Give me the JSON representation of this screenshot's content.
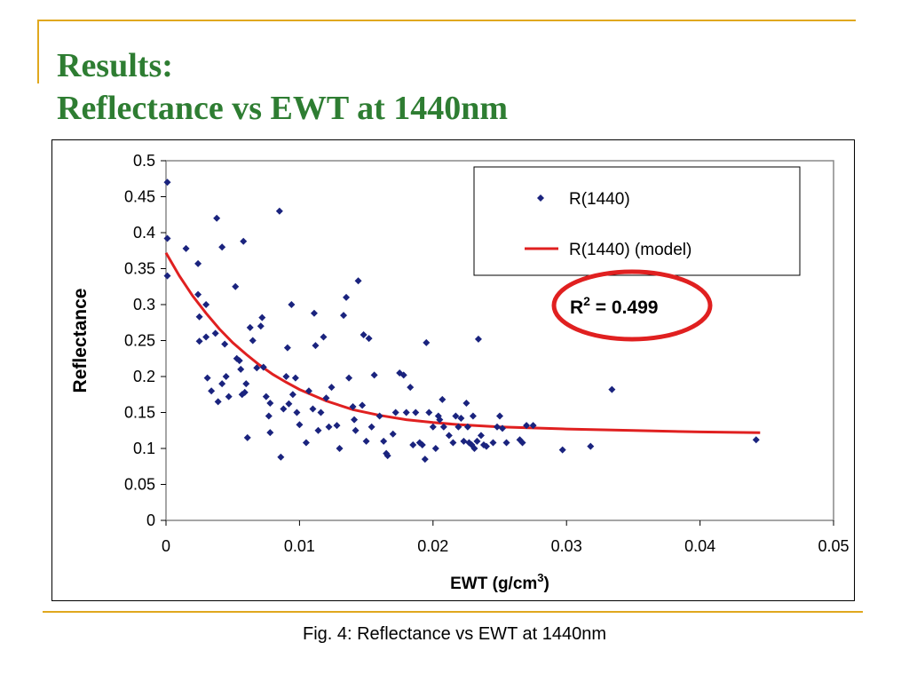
{
  "slide": {
    "title_line1": "Results:",
    "title_line2": "Reflectance vs EWT at 1440nm",
    "caption": "Fig. 4: Reflectance vs EWT at 1440nm",
    "accent_color": "#e0a81e",
    "title_color": "#2e7d32"
  },
  "chart_data": {
    "type": "scatter",
    "xlabel_base": "EWT (g/cm",
    "xlabel_sup": "3",
    "xlabel_end": ")",
    "ylabel": "Reflectance",
    "xlim": [
      0,
      0.05
    ],
    "ylim": [
      0,
      0.5
    ],
    "x_ticks": [
      "0",
      "0.01",
      "0.02",
      "0.03",
      "0.04",
      "0.05"
    ],
    "y_ticks": [
      "0",
      "0.05",
      "0.1",
      "0.15",
      "0.2",
      "0.25",
      "0.3",
      "0.35",
      "0.4",
      "0.45",
      "0.5"
    ],
    "grid": false,
    "legend_position": "top-right",
    "annotation": {
      "base": "R",
      "sup": "2",
      "rest": " = 0.499",
      "circle_color": "#e02020"
    },
    "series": [
      {
        "name": "R(1440)",
        "kind": "scatter",
        "color": "#1a237e",
        "points": [
          [
            0.0001,
            0.47
          ],
          [
            0.0001,
            0.392
          ],
          [
            0.0001,
            0.34
          ],
          [
            0.0015,
            0.378
          ],
          [
            0.0024,
            0.357
          ],
          [
            0.0024,
            0.314
          ],
          [
            0.0025,
            0.283
          ],
          [
            0.0025,
            0.249
          ],
          [
            0.003,
            0.3
          ],
          [
            0.003,
            0.255
          ],
          [
            0.0031,
            0.198
          ],
          [
            0.0034,
            0.18
          ],
          [
            0.0037,
            0.26
          ],
          [
            0.0038,
            0.42
          ],
          [
            0.0039,
            0.165
          ],
          [
            0.0042,
            0.38
          ],
          [
            0.0042,
            0.19
          ],
          [
            0.0044,
            0.245
          ],
          [
            0.0045,
            0.2
          ],
          [
            0.0047,
            0.172
          ],
          [
            0.0052,
            0.325
          ],
          [
            0.0053,
            0.225
          ],
          [
            0.0055,
            0.222
          ],
          [
            0.0056,
            0.21
          ],
          [
            0.0057,
            0.175
          ],
          [
            0.0058,
            0.388
          ],
          [
            0.0059,
            0.178
          ],
          [
            0.006,
            0.19
          ],
          [
            0.0061,
            0.115
          ],
          [
            0.0063,
            0.268
          ],
          [
            0.0065,
            0.25
          ],
          [
            0.0068,
            0.212
          ],
          [
            0.0071,
            0.27
          ],
          [
            0.0072,
            0.282
          ],
          [
            0.0073,
            0.213
          ],
          [
            0.0075,
            0.172
          ],
          [
            0.0077,
            0.145
          ],
          [
            0.0078,
            0.163
          ],
          [
            0.0078,
            0.122
          ],
          [
            0.0085,
            0.43
          ],
          [
            0.0086,
            0.088
          ],
          [
            0.0088,
            0.155
          ],
          [
            0.009,
            0.2
          ],
          [
            0.0091,
            0.24
          ],
          [
            0.0092,
            0.162
          ],
          [
            0.0094,
            0.3
          ],
          [
            0.0095,
            0.175
          ],
          [
            0.0097,
            0.198
          ],
          [
            0.0098,
            0.15
          ],
          [
            0.01,
            0.133
          ],
          [
            0.0105,
            0.108
          ],
          [
            0.0107,
            0.18
          ],
          [
            0.011,
            0.155
          ],
          [
            0.0111,
            0.288
          ],
          [
            0.0112,
            0.243
          ],
          [
            0.0114,
            0.125
          ],
          [
            0.0116,
            0.15
          ],
          [
            0.0118,
            0.255
          ],
          [
            0.012,
            0.17
          ],
          [
            0.0122,
            0.13
          ],
          [
            0.0124,
            0.185
          ],
          [
            0.0128,
            0.132
          ],
          [
            0.013,
            0.1
          ],
          [
            0.0133,
            0.285
          ],
          [
            0.0135,
            0.31
          ],
          [
            0.0137,
            0.198
          ],
          [
            0.014,
            0.158
          ],
          [
            0.0141,
            0.14
          ],
          [
            0.0142,
            0.125
          ],
          [
            0.0144,
            0.333
          ],
          [
            0.0147,
            0.16
          ],
          [
            0.0148,
            0.258
          ],
          [
            0.015,
            0.11
          ],
          [
            0.0152,
            0.253
          ],
          [
            0.0154,
            0.13
          ],
          [
            0.0156,
            0.202
          ],
          [
            0.016,
            0.145
          ],
          [
            0.0163,
            0.11
          ],
          [
            0.0165,
            0.093
          ],
          [
            0.0166,
            0.09
          ],
          [
            0.017,
            0.12
          ],
          [
            0.0172,
            0.15
          ],
          [
            0.0175,
            0.205
          ],
          [
            0.0178,
            0.202
          ],
          [
            0.018,
            0.15
          ],
          [
            0.0183,
            0.185
          ],
          [
            0.0185,
            0.105
          ],
          [
            0.0187,
            0.15
          ],
          [
            0.019,
            0.108
          ],
          [
            0.0192,
            0.105
          ],
          [
            0.0194,
            0.085
          ],
          [
            0.0195,
            0.247
          ],
          [
            0.0197,
            0.15
          ],
          [
            0.02,
            0.13
          ],
          [
            0.0202,
            0.1
          ],
          [
            0.0204,
            0.145
          ],
          [
            0.0205,
            0.14
          ],
          [
            0.0207,
            0.168
          ],
          [
            0.0208,
            0.13
          ],
          [
            0.0212,
            0.118
          ],
          [
            0.0215,
            0.108
          ],
          [
            0.0217,
            0.145
          ],
          [
            0.0219,
            0.13
          ],
          [
            0.0221,
            0.142
          ],
          [
            0.0223,
            0.11
          ],
          [
            0.0225,
            0.163
          ],
          [
            0.0226,
            0.13
          ],
          [
            0.0227,
            0.108
          ],
          [
            0.0229,
            0.105
          ],
          [
            0.023,
            0.145
          ],
          [
            0.0231,
            0.1
          ],
          [
            0.0233,
            0.11
          ],
          [
            0.0234,
            0.252
          ],
          [
            0.0236,
            0.118
          ],
          [
            0.0238,
            0.105
          ],
          [
            0.024,
            0.103
          ],
          [
            0.0245,
            0.108
          ],
          [
            0.0248,
            0.13
          ],
          [
            0.025,
            0.145
          ],
          [
            0.0252,
            0.128
          ],
          [
            0.0255,
            0.108
          ],
          [
            0.0265,
            0.112
          ],
          [
            0.0267,
            0.108
          ],
          [
            0.027,
            0.132
          ],
          [
            0.0275,
            0.132
          ],
          [
            0.0297,
            0.098
          ],
          [
            0.0318,
            0.103
          ],
          [
            0.0334,
            0.182
          ],
          [
            0.0442,
            0.112
          ]
        ]
      },
      {
        "name": "R(1440) (model)",
        "kind": "line",
        "color": "#e02020",
        "points": [
          [
            0.0,
            0.372
          ],
          [
            0.001,
            0.34
          ],
          [
            0.002,
            0.312
          ],
          [
            0.003,
            0.288
          ],
          [
            0.004,
            0.266
          ],
          [
            0.005,
            0.247
          ],
          [
            0.006,
            0.231
          ],
          [
            0.007,
            0.216
          ],
          [
            0.008,
            0.203
          ],
          [
            0.009,
            0.192
          ],
          [
            0.01,
            0.182
          ],
          [
            0.012,
            0.166
          ],
          [
            0.014,
            0.154
          ],
          [
            0.016,
            0.146
          ],
          [
            0.018,
            0.14
          ],
          [
            0.02,
            0.136
          ],
          [
            0.022,
            0.133
          ],
          [
            0.025,
            0.13
          ],
          [
            0.03,
            0.127
          ],
          [
            0.035,
            0.125
          ],
          [
            0.04,
            0.123
          ],
          [
            0.0445,
            0.122
          ]
        ]
      }
    ]
  }
}
